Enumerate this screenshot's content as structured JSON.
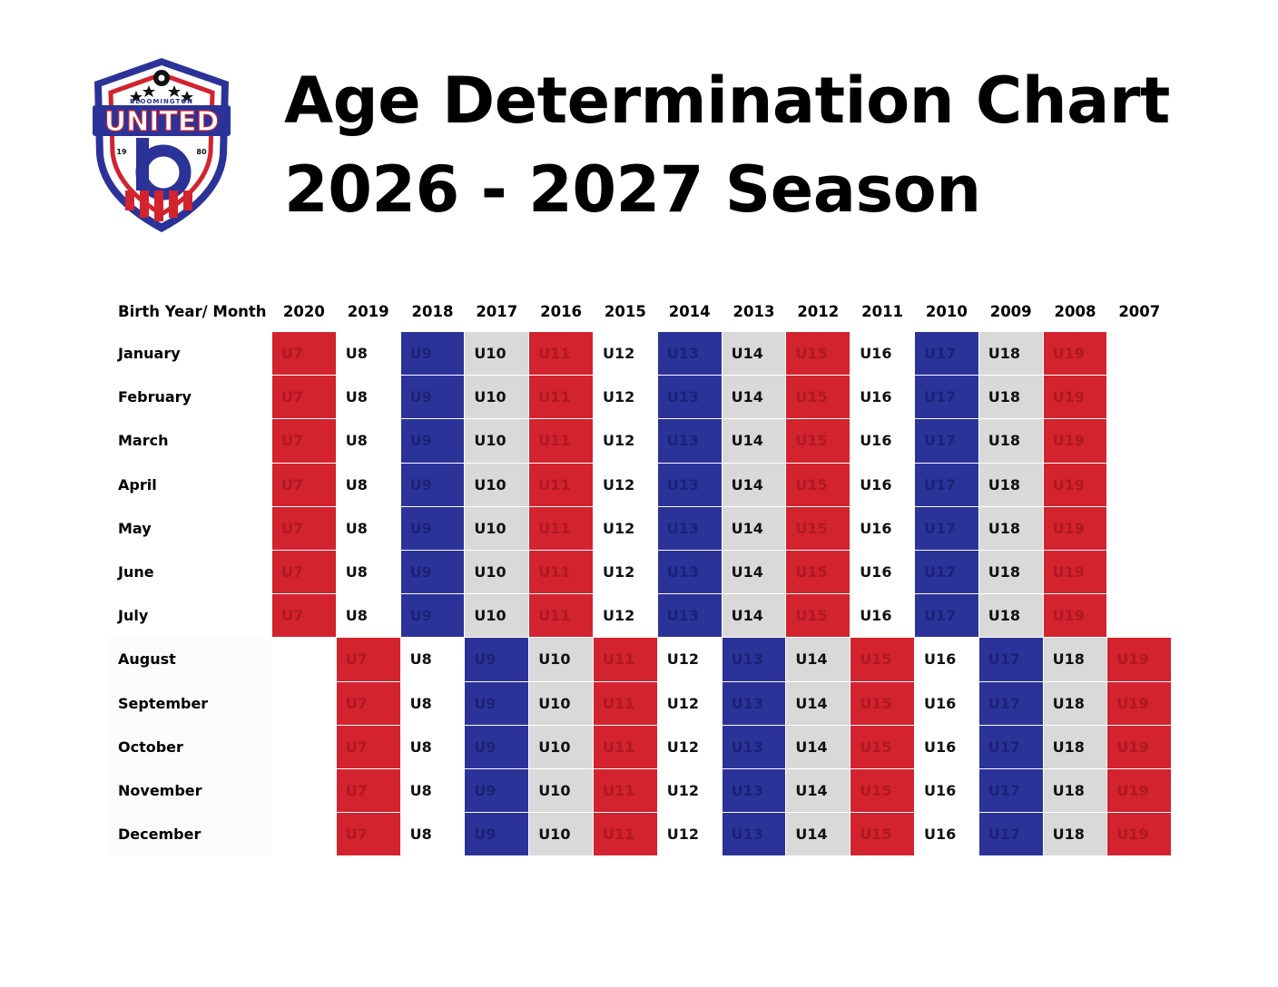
{
  "logo": {
    "top_text": "BLOOMINGTON",
    "name": "UNITED",
    "year_left": "19",
    "year_right": "80",
    "colors": {
      "red": "#d2232f",
      "blue": "#2b3398"
    }
  },
  "title": {
    "line1": "Age Determination Chart",
    "line2": "2026 - 2027 Season"
  },
  "table": {
    "corner_label": "Birth Year/ Month",
    "years": [
      "2020",
      "2019",
      "2018",
      "2017",
      "2016",
      "2015",
      "2014",
      "2013",
      "2012",
      "2011",
      "2010",
      "2009",
      "2008",
      "2007"
    ],
    "months": [
      "January",
      "February",
      "March",
      "April",
      "May",
      "June",
      "July",
      "August",
      "September",
      "October",
      "November",
      "December"
    ],
    "early_ages": [
      "U7",
      "U8",
      "U9",
      "U10",
      "U11",
      "U12",
      "U13",
      "U14",
      "U15",
      "U16",
      "U17",
      "U18",
      "U19",
      ""
    ],
    "late_ages": [
      "",
      "U7",
      "U8",
      "U9",
      "U10",
      "U11",
      "U12",
      "U13",
      "U14",
      "U15",
      "U16",
      "U17",
      "U18",
      "U19"
    ],
    "early_months_count": 7,
    "age_colors": {
      "U7": "red",
      "U8": "white",
      "U9": "blue",
      "U10": "grey",
      "U11": "red",
      "U12": "white",
      "U13": "blue",
      "U14": "grey",
      "U15": "red",
      "U16": "white",
      "U17": "blue",
      "U18": "grey",
      "U19": "red"
    }
  }
}
